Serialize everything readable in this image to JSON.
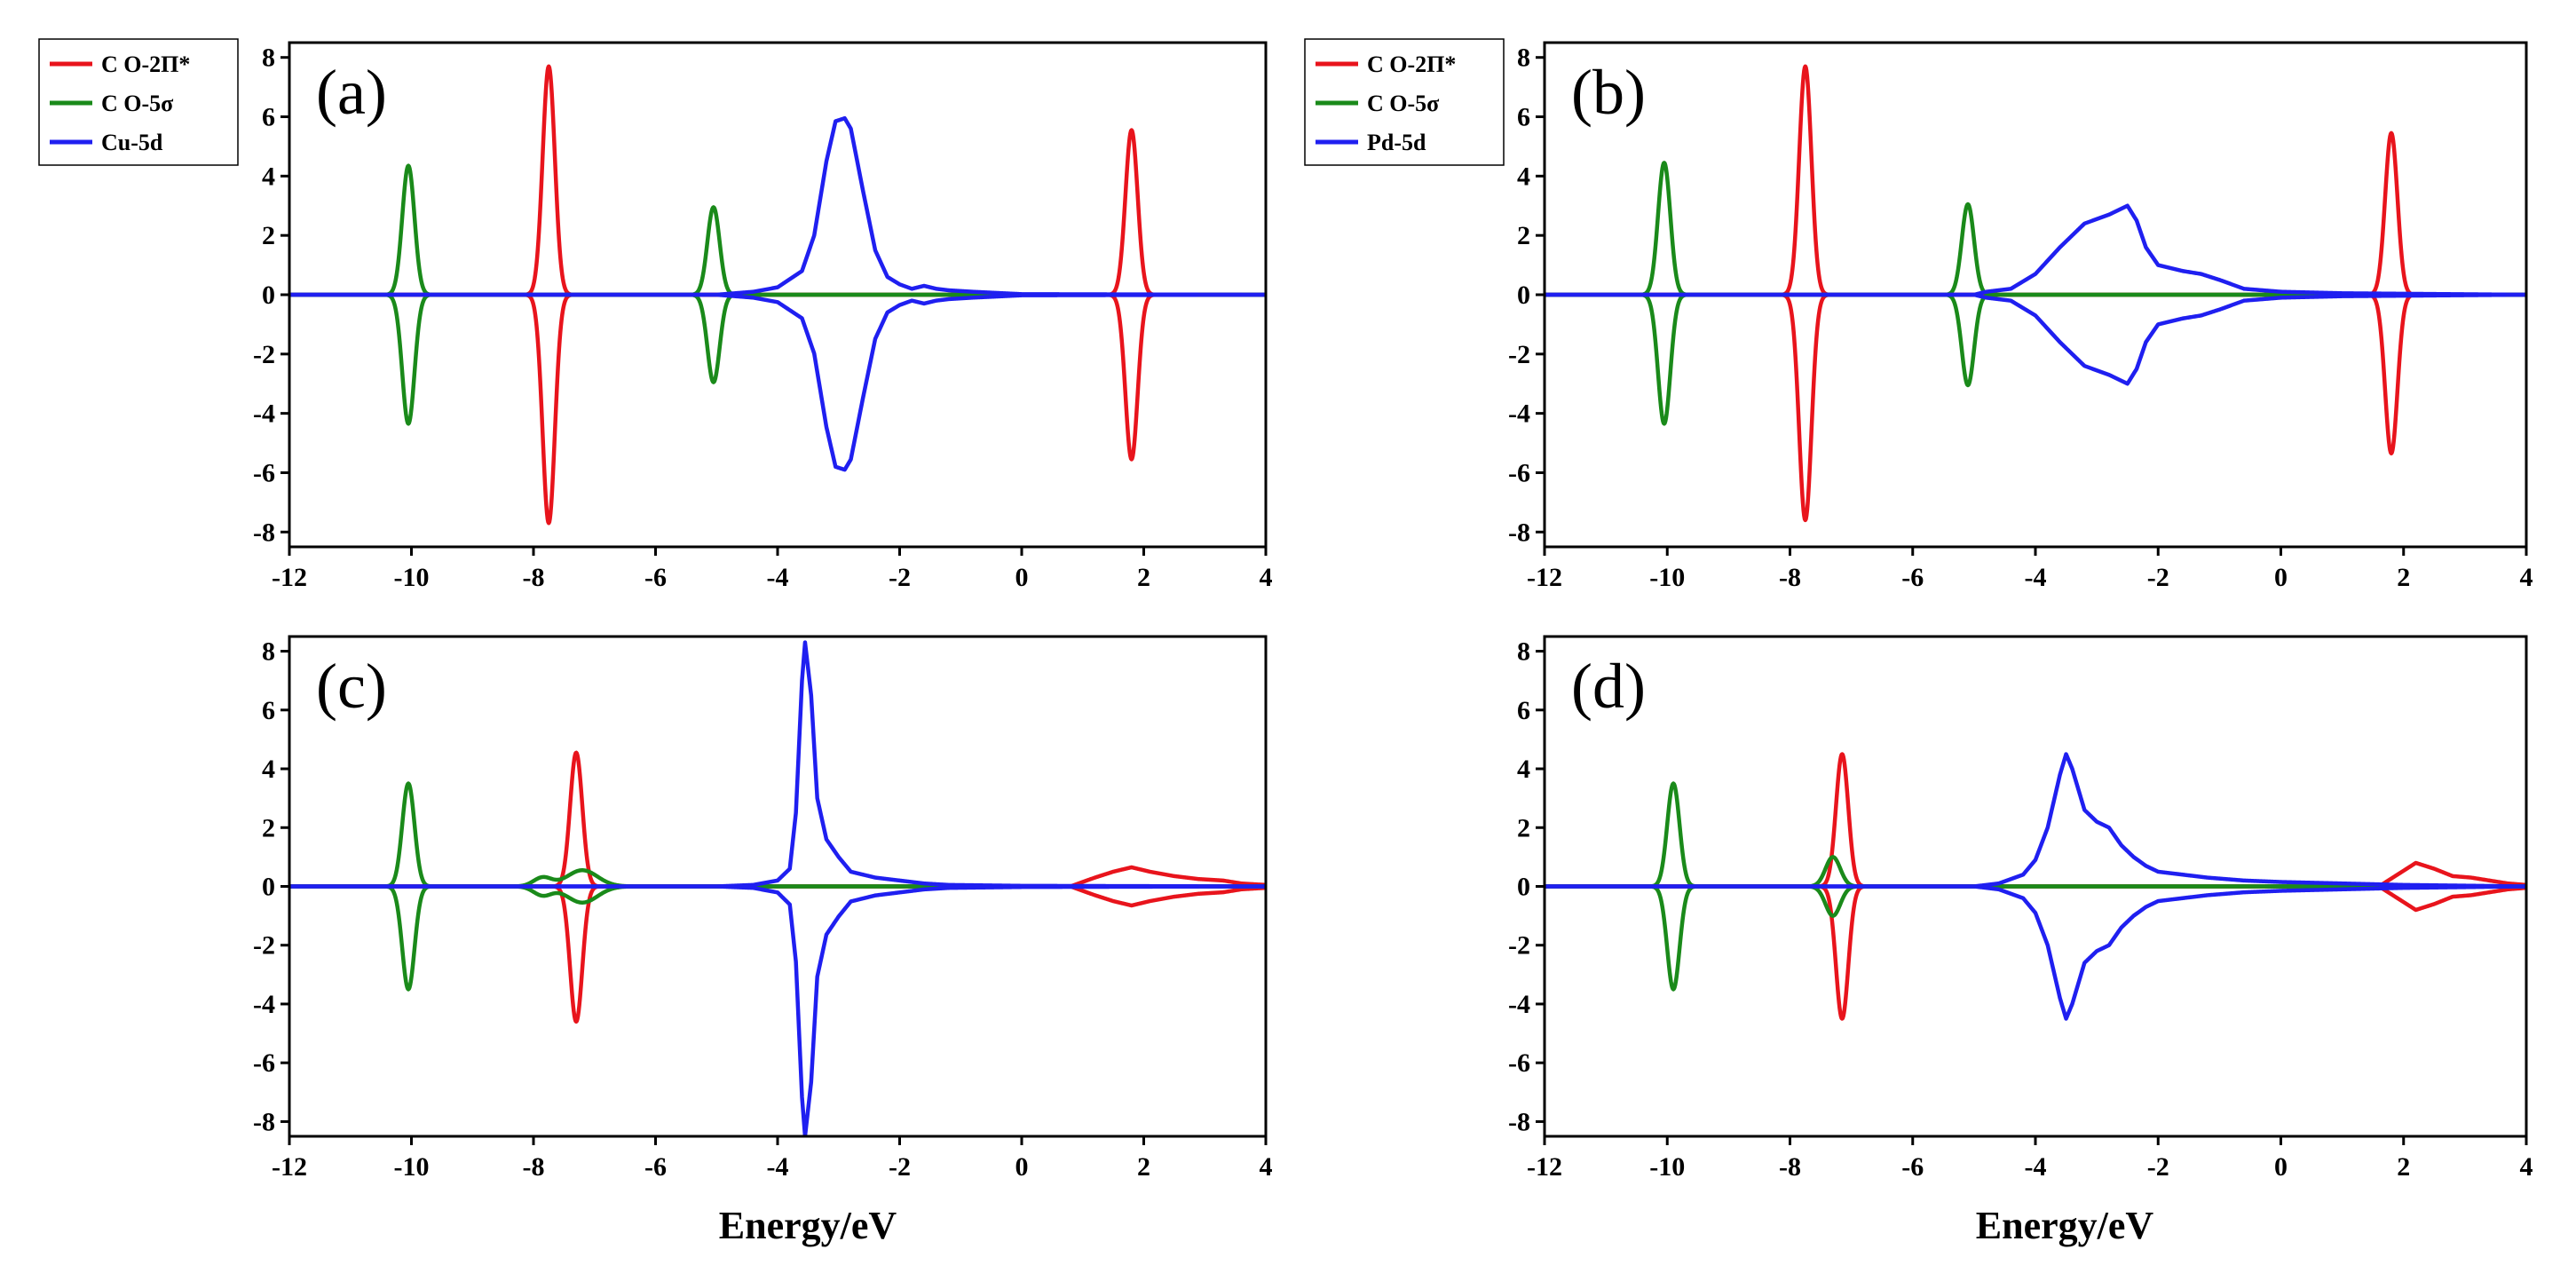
{
  "figure": {
    "xlabel": "Energy/eV",
    "x_ticks": [
      -12,
      -10,
      -8,
      -6,
      -4,
      -2,
      0,
      2,
      4
    ],
    "y_ticks": [
      -8,
      -6,
      -4,
      -2,
      0,
      2,
      4,
      6,
      8
    ]
  },
  "colors": {
    "red": "#e8141c",
    "green": "#1a8a1a",
    "blue": "#1f1ff0"
  },
  "chart_data": [
    {
      "type": "line",
      "panel": "(a)",
      "title": "",
      "xlabel": "",
      "ylabel": "",
      "xlim": [
        -12,
        4
      ],
      "ylim": [
        -8.5,
        8.5
      ],
      "legend": {
        "placement": "top-left outside",
        "entries": [
          "C O-2Π*",
          "C O-5σ",
          "Cu-5d"
        ]
      },
      "series": [
        {
          "name": "C O-2Π*",
          "color": "red",
          "peaks": [
            {
              "center": -7.75,
              "up": 7.7,
              "down": 7.7,
              "width": 0.1
            },
            {
              "center": 1.8,
              "up": 5.55,
              "down": 5.55,
              "width": 0.1
            }
          ]
        },
        {
          "name": "C O-5σ",
          "color": "green",
          "peaks": [
            {
              "center": -10.05,
              "up": 4.35,
              "down": 4.35,
              "width": 0.1
            },
            {
              "center": -5.05,
              "up": 2.95,
              "down": 2.95,
              "width": 0.1
            }
          ]
        },
        {
          "name": "Cu-5d",
          "color": "blue",
          "peaks": [
            {
              "center": -3.0,
              "up": 5.95,
              "down": 5.9,
              "width": 0.35,
              "profile": [
                [
                  -5,
                  0
                ],
                [
                  -4.4,
                  0.1
                ],
                [
                  -4.0,
                  0.25
                ],
                [
                  -3.6,
                  0.8
                ],
                [
                  -3.4,
                  2.0
                ],
                [
                  -3.2,
                  4.5
                ],
                [
                  -3.05,
                  5.85
                ],
                [
                  -2.9,
                  5.95
                ],
                [
                  -2.8,
                  5.6
                ],
                [
                  -2.6,
                  3.5
                ],
                [
                  -2.4,
                  1.5
                ],
                [
                  -2.2,
                  0.6
                ],
                [
                  -2.0,
                  0.35
                ],
                [
                  -1.8,
                  0.2
                ],
                [
                  -1.6,
                  0.3
                ],
                [
                  -1.4,
                  0.2
                ],
                [
                  -1.2,
                  0.15
                ],
                [
                  -0.8,
                  0.1
                ],
                [
                  0,
                  0.02
                ],
                [
                  4,
                  0
                ]
              ]
            }
          ]
        }
      ]
    },
    {
      "type": "line",
      "panel": "(b)",
      "title": "",
      "xlabel": "",
      "ylabel": "",
      "xlim": [
        -12,
        4
      ],
      "ylim": [
        -8.5,
        8.5
      ],
      "legend": {
        "placement": "top-left outside",
        "entries": [
          "C O-2Π*",
          "C O-5σ",
          "Pd-5d"
        ]
      },
      "series": [
        {
          "name": "C O-2Π*",
          "color": "red",
          "peaks": [
            {
              "center": -7.75,
              "up": 7.7,
              "down": 7.6,
              "width": 0.1
            },
            {
              "center": 1.8,
              "up": 5.45,
              "down": 5.35,
              "width": 0.1
            }
          ]
        },
        {
          "name": "C O-5σ",
          "color": "green",
          "peaks": [
            {
              "center": -10.05,
              "up": 4.45,
              "down": 4.35,
              "width": 0.1
            },
            {
              "center": -5.1,
              "up": 3.05,
              "down": 3.05,
              "width": 0.1
            }
          ]
        },
        {
          "name": "Pd-5d",
          "color": "blue",
          "peaks": [
            {
              "center": -2.8,
              "up": 3.0,
              "down": 3.0,
              "width": 0.8,
              "profile": [
                [
                  -5,
                  0
                ],
                [
                  -4.8,
                  0.1
                ],
                [
                  -4.4,
                  0.2
                ],
                [
                  -4.0,
                  0.7
                ],
                [
                  -3.6,
                  1.6
                ],
                [
                  -3.2,
                  2.4
                ],
                [
                  -2.8,
                  2.7
                ],
                [
                  -2.6,
                  2.9
                ],
                [
                  -2.5,
                  3.0
                ],
                [
                  -2.35,
                  2.5
                ],
                [
                  -2.2,
                  1.6
                ],
                [
                  -2.0,
                  1.0
                ],
                [
                  -1.6,
                  0.8
                ],
                [
                  -1.3,
                  0.7
                ],
                [
                  -1.0,
                  0.5
                ],
                [
                  -0.6,
                  0.2
                ],
                [
                  0,
                  0.1
                ],
                [
                  1,
                  0.05
                ],
                [
                  4,
                  0
                ]
              ]
            }
          ]
        }
      ]
    },
    {
      "type": "line",
      "panel": "(c)",
      "title": "",
      "xlabel": "Energy/eV",
      "ylabel": "",
      "xlim": [
        -12,
        4
      ],
      "ylim": [
        -8.5,
        8.5
      ],
      "legend": null,
      "series": [
        {
          "name": "C O-2Π*",
          "color": "red",
          "peaks": [
            {
              "center": -7.3,
              "up": 4.55,
              "down": 4.6,
              "width": 0.1
            },
            {
              "center": 1.8,
              "up": 0.65,
              "down": 0.65,
              "width": 0.5,
              "profile": [
                [
                  0.8,
                  0
                ],
                [
                  1.2,
                  0.3
                ],
                [
                  1.5,
                  0.5
                ],
                [
                  1.8,
                  0.65
                ],
                [
                  2.1,
                  0.5
                ],
                [
                  2.5,
                  0.35
                ],
                [
                  2.9,
                  0.25
                ],
                [
                  3.3,
                  0.2
                ],
                [
                  3.6,
                  0.1
                ],
                [
                  4,
                  0.05
                ]
              ]
            }
          ]
        },
        {
          "name": "C O-5σ",
          "color": "green",
          "peaks": [
            {
              "center": -10.05,
              "up": 3.5,
              "down": 3.5,
              "width": 0.1
            },
            {
              "center": -7.85,
              "up": 0.3,
              "down": 0.3,
              "width": 0.15
            },
            {
              "center": -7.2,
              "up": 0.55,
              "down": 0.55,
              "width": 0.25
            }
          ]
        },
        {
          "name": "Cu-5d",
          "color": "blue",
          "peaks": [
            {
              "center": -3.55,
              "up": 8.3,
              "down": 8.5,
              "width": 0.15,
              "profile": [
                [
                  -5,
                  0
                ],
                [
                  -4.4,
                  0.05
                ],
                [
                  -4.0,
                  0.2
                ],
                [
                  -3.8,
                  0.6
                ],
                [
                  -3.7,
                  2.5
                ],
                [
                  -3.6,
                  7.0
                ],
                [
                  -3.55,
                  8.3
                ],
                [
                  -3.45,
                  6.5
                ],
                [
                  -3.35,
                  3.0
                ],
                [
                  -3.2,
                  1.6
                ],
                [
                  -3.0,
                  1.0
                ],
                [
                  -2.8,
                  0.5
                ],
                [
                  -2.4,
                  0.3
                ],
                [
                  -2.0,
                  0.2
                ],
                [
                  -1.6,
                  0.1
                ],
                [
                  -1.2,
                  0.05
                ],
                [
                  0,
                  0.02
                ],
                [
                  4,
                  0
                ]
              ]
            }
          ]
        }
      ]
    },
    {
      "type": "line",
      "panel": "(d)",
      "title": "",
      "xlabel": "Energy/eV",
      "ylabel": "",
      "xlim": [
        -12,
        4
      ],
      "ylim": [
        -8.5,
        8.5
      ],
      "legend": null,
      "series": [
        {
          "name": "C O-2Π*",
          "color": "red",
          "peaks": [
            {
              "center": -7.15,
              "up": 4.5,
              "down": 4.5,
              "width": 0.1
            },
            {
              "center": 2.2,
              "up": 0.8,
              "down": 0.8,
              "width": 0.4,
              "profile": [
                [
                  1.6,
                  0
                ],
                [
                  1.9,
                  0.4
                ],
                [
                  2.2,
                  0.8
                ],
                [
                  2.5,
                  0.6
                ],
                [
                  2.8,
                  0.35
                ],
                [
                  3.1,
                  0.3
                ],
                [
                  3.4,
                  0.2
                ],
                [
                  3.7,
                  0.1
                ],
                [
                  4,
                  0.05
                ]
              ]
            }
          ]
        },
        {
          "name": "C O-5σ",
          "color": "green",
          "peaks": [
            {
              "center": -9.9,
              "up": 3.5,
              "down": 3.5,
              "width": 0.1
            },
            {
              "center": -7.3,
              "up": 1.0,
              "down": 1.0,
              "width": 0.12
            }
          ]
        },
        {
          "name": "Pd-5d",
          "color": "blue",
          "peaks": [
            {
              "center": -3.5,
              "up": 4.5,
              "down": 4.5,
              "width": 0.25,
              "profile": [
                [
                  -5,
                  0
                ],
                [
                  -4.6,
                  0.1
                ],
                [
                  -4.2,
                  0.4
                ],
                [
                  -4.0,
                  0.9
                ],
                [
                  -3.8,
                  2.0
                ],
                [
                  -3.6,
                  3.8
                ],
                [
                  -3.5,
                  4.5
                ],
                [
                  -3.4,
                  4.0
                ],
                [
                  -3.2,
                  2.6
                ],
                [
                  -3.0,
                  2.2
                ],
                [
                  -2.8,
                  2.0
                ],
                [
                  -2.6,
                  1.4
                ],
                [
                  -2.4,
                  1.0
                ],
                [
                  -2.2,
                  0.7
                ],
                [
                  -2.0,
                  0.5
                ],
                [
                  -1.6,
                  0.4
                ],
                [
                  -1.2,
                  0.3
                ],
                [
                  -0.6,
                  0.2
                ],
                [
                  0,
                  0.15
                ],
                [
                  1,
                  0.1
                ],
                [
                  2,
                  0.05
                ],
                [
                  4,
                  0
                ]
              ]
            }
          ]
        }
      ]
    }
  ]
}
